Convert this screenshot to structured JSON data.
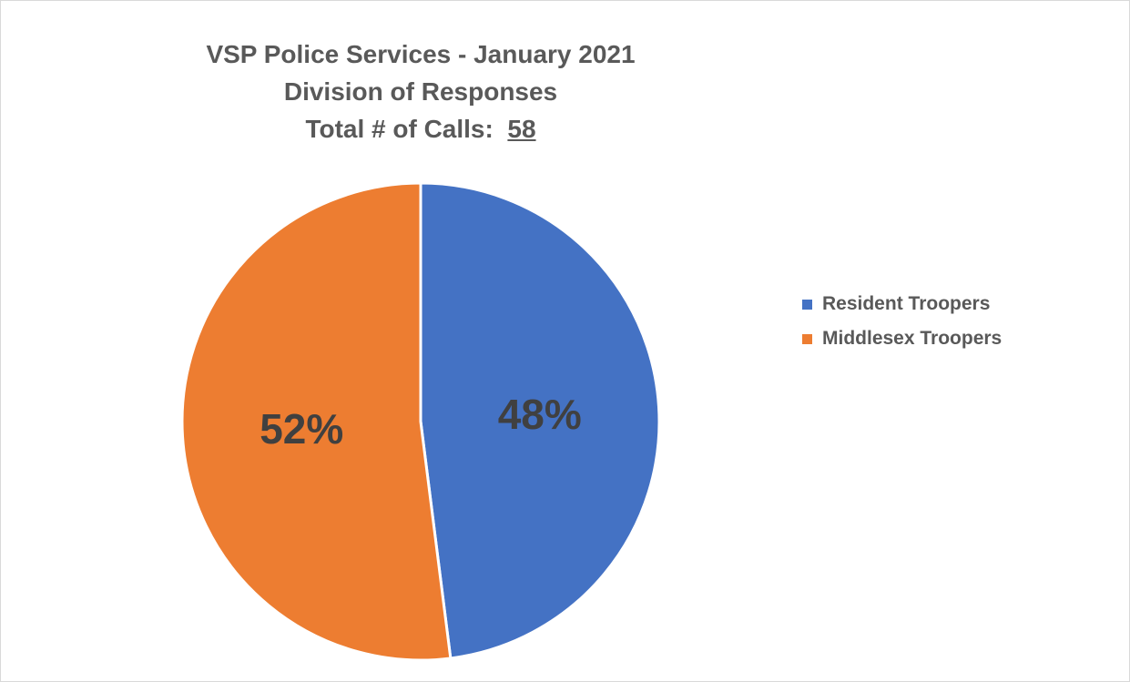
{
  "chart_data": {
    "type": "pie",
    "title": [
      "VSP Police Services - January 2021",
      "Division of Responses"
    ],
    "total_label": "Total # of Calls:",
    "total_value": "58",
    "slices": [
      {
        "name": "Resident Troopers",
        "value": 48,
        "label": "48%",
        "color": "#4472C4"
      },
      {
        "name": "Middlesex Troopers",
        "value": 52,
        "label": "52%",
        "color": "#ED7D31"
      }
    ],
    "legend_position": "right",
    "label_color": "#404040"
  }
}
